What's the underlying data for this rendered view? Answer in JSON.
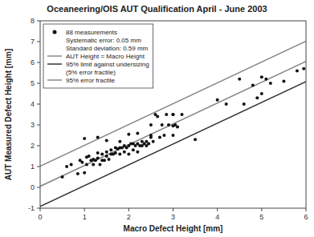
{
  "chart_data": {
    "type": "scatter",
    "title": "Oceaneering/OIS AUT Qualification April - June 2003",
    "xlabel": "Macro Defect Height [mm]",
    "ylabel": "AUT Measured Defect Height [mm]",
    "xlim": [
      0,
      6
    ],
    "ylim": [
      -1,
      8
    ],
    "xticks": [
      0,
      1,
      2,
      3,
      4,
      5,
      6
    ],
    "yticks": [
      -1,
      0,
      1,
      2,
      3,
      4,
      5,
      6,
      7,
      8
    ],
    "grid": false,
    "legend": "upper left",
    "annotations": [
      "Systematic error: 0.05 mm",
      "Standard deviation: 0.59 mm"
    ],
    "series": [
      {
        "name": "88 measurements",
        "type": "scatter",
        "marker": "circle",
        "color": "#111111",
        "x": [
          0.5,
          0.7,
          0.85,
          0.9,
          0.95,
          1.0,
          1.05,
          1.05,
          1.1,
          1.15,
          1.2,
          1.2,
          1.25,
          1.3,
          1.3,
          1.35,
          1.4,
          1.4,
          1.45,
          1.5,
          1.5,
          1.55,
          1.6,
          1.6,
          1.65,
          1.7,
          1.7,
          1.75,
          1.8,
          1.8,
          1.85,
          1.9,
          1.9,
          1.95,
          2.0,
          2.0,
          2.05,
          2.1,
          2.1,
          2.15,
          2.2,
          2.25,
          2.3,
          2.3,
          2.35,
          2.4,
          2.4,
          2.45,
          2.5,
          2.55,
          2.6,
          2.65,
          2.7,
          2.75,
          2.8,
          2.85,
          2.9,
          3.0,
          3.05,
          3.1,
          3.2,
          4.2,
          4.5,
          4.6,
          4.8,
          4.9,
          5.0,
          5.1,
          5.2,
          5.8,
          5.95,
          1.0,
          1.5,
          2.0,
          2.5,
          3.0,
          3.5,
          4.0,
          5.0,
          5.5,
          0.6,
          1.3,
          1.8,
          2.2,
          2.2,
          2.5,
          3.0,
          3.0
        ],
        "values": [
          0.5,
          1.1,
          0.65,
          1.3,
          1.2,
          0.7,
          1.1,
          1.45,
          1.5,
          1.3,
          1.1,
          1.35,
          1.3,
          1.4,
          1.65,
          1.1,
          1.3,
          1.6,
          1.3,
          1.5,
          1.7,
          1.35,
          1.6,
          1.8,
          1.6,
          1.65,
          1.9,
          1.85,
          1.6,
          1.9,
          1.9,
          1.7,
          2.0,
          1.9,
          1.6,
          2.0,
          2.1,
          1.8,
          2.1,
          2.0,
          2.1,
          2.0,
          2.0,
          2.2,
          2.1,
          2.0,
          2.2,
          2.1,
          2.4,
          2.2,
          3.5,
          3.4,
          2.4,
          3.0,
          2.5,
          3.5,
          3.0,
          3.5,
          3.0,
          2.9,
          3.5,
          4.0,
          5.2,
          4.0,
          4.9,
          4.3,
          5.3,
          5.2,
          5.0,
          5.6,
          5.7,
          2.35,
          2.25,
          2.55,
          2.5,
          2.5,
          2.3,
          4.2,
          4.5,
          5.1,
          1.0,
          2.4,
          2.2,
          1.7,
          2.6,
          3.0,
          2.95,
          3.5
        ]
      },
      {
        "name": "AUT Height = Macro Height",
        "type": "line",
        "line_style": "solid",
        "color": "#888888",
        "x": [
          0,
          6
        ],
        "values": [
          0.05,
          6.05
        ]
      },
      {
        "name": "95% limit against undersizing\n(5% error fractile)",
        "type": "line",
        "line_style": "solid",
        "color": "#333333",
        "x": [
          0,
          6
        ],
        "values": [
          -0.92,
          5.08
        ]
      },
      {
        "name": "95% error fractile",
        "type": "line",
        "line_style": "solid",
        "color": "#888888",
        "x": [
          0,
          6
        ],
        "values": [
          1.02,
          7.02
        ]
      }
    ]
  }
}
